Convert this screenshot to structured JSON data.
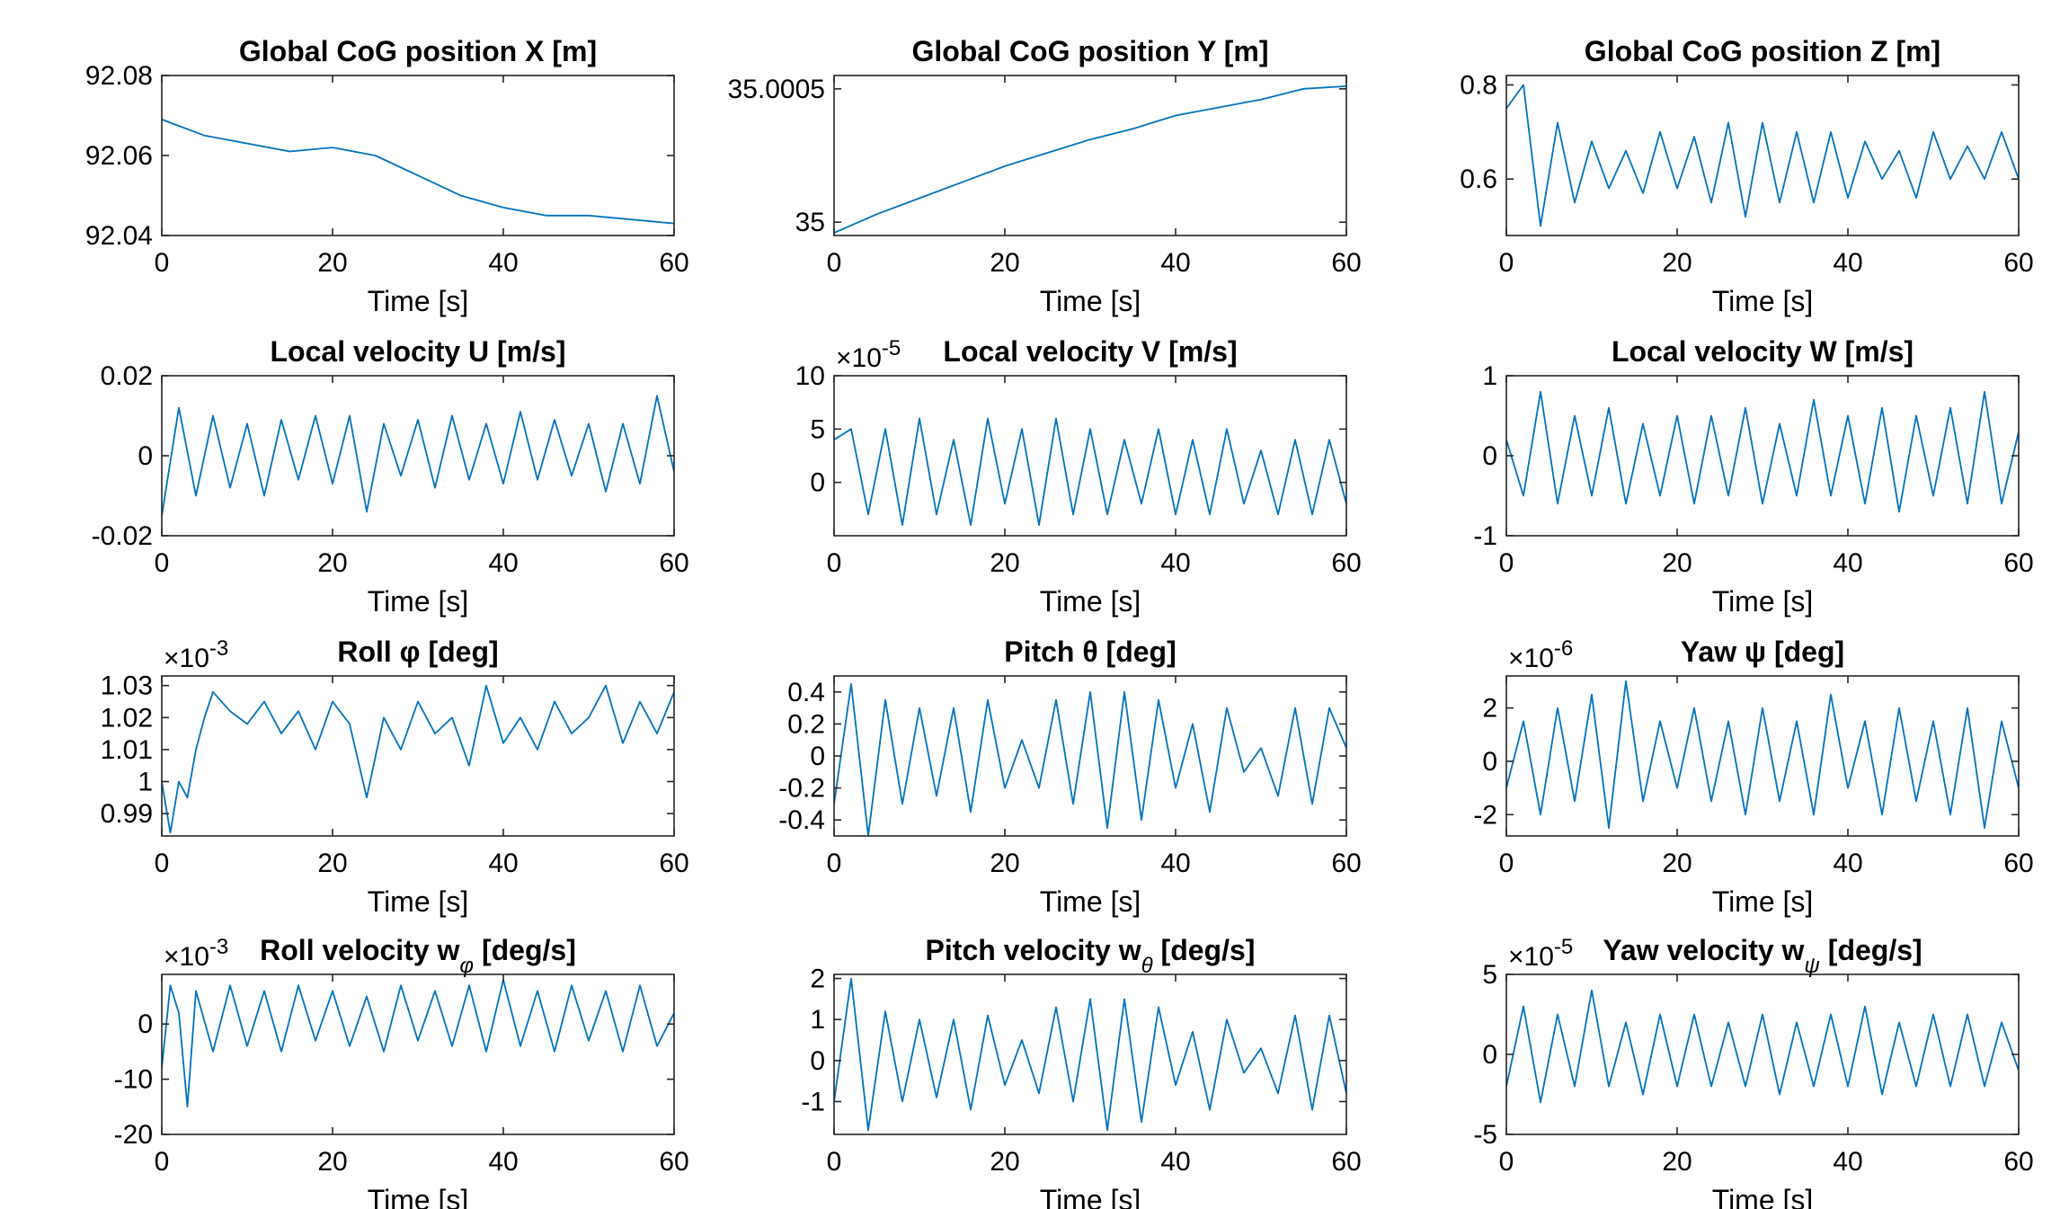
{
  "chart_data": [
    {
      "type": "line",
      "title": "Global CoG position X [m]",
      "xlabel": "Time [s]",
      "xlim": [
        0,
        60
      ],
      "xticks": [
        0,
        20,
        40,
        60
      ],
      "xticklabels": [
        "0",
        "20",
        "40",
        "60"
      ],
      "ylim": [
        92.04,
        92.08
      ],
      "yticks": [
        92.04,
        92.06,
        92.08
      ],
      "yticklabels": [
        "92.04",
        "92.06",
        "92.08"
      ],
      "multiplier": "",
      "series": [
        {
          "x": [
            0,
            5,
            10,
            15,
            20,
            25,
            30,
            35,
            40,
            45,
            50,
            55,
            60
          ],
          "y": [
            92.069,
            92.065,
            92.063,
            92.061,
            92.062,
            92.06,
            92.055,
            92.05,
            92.047,
            92.045,
            92.045,
            92.044,
            92.043
          ]
        }
      ]
    },
    {
      "type": "line",
      "title": "Global CoG position Y [m]",
      "xlabel": "Time [s]",
      "xlim": [
        0,
        60
      ],
      "xticks": [
        0,
        20,
        40,
        60
      ],
      "xticklabels": [
        "0",
        "20",
        "40",
        "60"
      ],
      "ylim": [
        34.99995,
        35.00055
      ],
      "yticks": [
        35,
        35.0005
      ],
      "yticklabels": [
        "35",
        "35.0005"
      ],
      "multiplier": "",
      "series": [
        {
          "x": [
            0,
            5,
            10,
            15,
            20,
            25,
            30,
            35,
            40,
            45,
            50,
            55,
            60
          ],
          "y": [
            34.99996,
            35.00003,
            35.00009,
            35.00015,
            35.00021,
            35.00026,
            35.00031,
            35.00035,
            35.0004,
            35.00043,
            35.00046,
            35.0005,
            35.00051
          ]
        }
      ]
    },
    {
      "type": "line",
      "title": "Global CoG position Z [m]",
      "xlabel": "Time [s]",
      "xlim": [
        0,
        60
      ],
      "xticks": [
        0,
        20,
        40,
        60
      ],
      "xticklabels": [
        "0",
        "20",
        "40",
        "60"
      ],
      "ylim": [
        0.48,
        0.82
      ],
      "yticks": [
        0.6,
        0.8
      ],
      "yticklabels": [
        "0.6",
        "0.8"
      ],
      "multiplier": "",
      "series": [
        {
          "x": [
            0,
            2,
            4,
            6,
            8,
            10,
            12,
            14,
            16,
            18,
            20,
            22,
            24,
            26,
            28,
            30,
            32,
            34,
            36,
            38,
            40,
            42,
            44,
            46,
            48,
            50,
            52,
            54,
            56,
            58,
            60
          ],
          "y": [
            0.75,
            0.8,
            0.5,
            0.72,
            0.55,
            0.68,
            0.58,
            0.66,
            0.57,
            0.7,
            0.58,
            0.69,
            0.55,
            0.72,
            0.52,
            0.72,
            0.55,
            0.7,
            0.55,
            0.7,
            0.56,
            0.68,
            0.6,
            0.66,
            0.56,
            0.7,
            0.6,
            0.67,
            0.6,
            0.7,
            0.6
          ]
        }
      ]
    },
    {
      "type": "line",
      "title": "Local velocity U [m/s]",
      "xlabel": "Time [s]",
      "xlim": [
        0,
        60
      ],
      "xticks": [
        0,
        20,
        40,
        60
      ],
      "xticklabels": [
        "0",
        "20",
        "40",
        "60"
      ],
      "ylim": [
        -0.02,
        0.02
      ],
      "yticks": [
        -0.02,
        0,
        0.02
      ],
      "yticklabels": [
        "-0.02",
        "0",
        "0.02"
      ],
      "multiplier": "",
      "series": [
        {
          "x": [
            0,
            2,
            4,
            6,
            8,
            10,
            12,
            14,
            16,
            18,
            20,
            22,
            24,
            26,
            28,
            30,
            32,
            34,
            36,
            38,
            40,
            42,
            44,
            46,
            48,
            50,
            52,
            54,
            56,
            58,
            60
          ],
          "y": [
            -0.015,
            0.012,
            -0.01,
            0.01,
            -0.008,
            0.008,
            -0.01,
            0.009,
            -0.006,
            0.01,
            -0.007,
            0.01,
            -0.014,
            0.008,
            -0.005,
            0.009,
            -0.008,
            0.01,
            -0.006,
            0.008,
            -0.007,
            0.011,
            -0.006,
            0.009,
            -0.005,
            0.008,
            -0.009,
            0.008,
            -0.007,
            0.015,
            -0.004
          ]
        }
      ]
    },
    {
      "type": "line",
      "title": "Local velocity V [m/s]",
      "xlabel": "Time [s]",
      "xlim": [
        0,
        60
      ],
      "xticks": [
        0,
        20,
        40,
        60
      ],
      "xticklabels": [
        "0",
        "20",
        "40",
        "60"
      ],
      "ylim": [
        -5,
        10
      ],
      "yticks": [
        0,
        5,
        10
      ],
      "yticklabels": [
        "0",
        "5",
        "10"
      ],
      "multiplier": "×10-5",
      "series": [
        {
          "x": [
            0,
            2,
            4,
            6,
            8,
            10,
            12,
            14,
            16,
            18,
            20,
            22,
            24,
            26,
            28,
            30,
            32,
            34,
            36,
            38,
            40,
            42,
            44,
            46,
            48,
            50,
            52,
            54,
            56,
            58,
            60
          ],
          "y": [
            4,
            5,
            -3,
            5,
            -4,
            6,
            -3,
            4,
            -4,
            6,
            -2,
            5,
            -4,
            6,
            -3,
            5,
            -3,
            4,
            -2,
            5,
            -3,
            4,
            -3,
            5,
            -2,
            3,
            -3,
            4,
            -3,
            4,
            -2
          ]
        }
      ]
    },
    {
      "type": "line",
      "title": "Local velocity W [m/s]",
      "xlabel": "Time [s]",
      "xlim": [
        0,
        60
      ],
      "xticks": [
        0,
        20,
        40,
        60
      ],
      "xticklabels": [
        "0",
        "20",
        "40",
        "60"
      ],
      "ylim": [
        -1,
        1
      ],
      "yticks": [
        -1,
        0,
        1
      ],
      "yticklabels": [
        "-1",
        "0",
        "1"
      ],
      "multiplier": "",
      "series": [
        {
          "x": [
            0,
            2,
            4,
            6,
            8,
            10,
            12,
            14,
            16,
            18,
            20,
            22,
            24,
            26,
            28,
            30,
            32,
            34,
            36,
            38,
            40,
            42,
            44,
            46,
            48,
            50,
            52,
            54,
            56,
            58,
            60
          ],
          "y": [
            0.2,
            -0.5,
            0.8,
            -0.6,
            0.5,
            -0.5,
            0.6,
            -0.6,
            0.4,
            -0.5,
            0.5,
            -0.6,
            0.5,
            -0.5,
            0.6,
            -0.6,
            0.4,
            -0.5,
            0.7,
            -0.5,
            0.5,
            -0.6,
            0.6,
            -0.7,
            0.5,
            -0.5,
            0.6,
            -0.6,
            0.8,
            -0.6,
            0.3
          ]
        }
      ]
    },
    {
      "type": "line",
      "title": "Roll φ [deg]",
      "xlabel": "Time [s]",
      "xlim": [
        0,
        60
      ],
      "xticks": [
        0,
        20,
        40,
        60
      ],
      "xticklabels": [
        "0",
        "20",
        "40",
        "60"
      ],
      "ylim": [
        0.983,
        1.033
      ],
      "yticks": [
        0.99,
        1,
        1.01,
        1.02,
        1.03
      ],
      "yticklabels": [
        "0.99",
        "1",
        "1.01",
        "1.02",
        "1.03"
      ],
      "multiplier": "×10-3",
      "series": [
        {
          "x": [
            0,
            1,
            2,
            3,
            4,
            5,
            6,
            8,
            10,
            12,
            14,
            16,
            18,
            20,
            22,
            24,
            26,
            28,
            30,
            32,
            34,
            36,
            38,
            40,
            42,
            44,
            46,
            48,
            50,
            52,
            54,
            56,
            58,
            60
          ],
          "y": [
            1.0,
            0.984,
            1.0,
            0.995,
            1.01,
            1.02,
            1.028,
            1.022,
            1.018,
            1.025,
            1.015,
            1.022,
            1.01,
            1.025,
            1.018,
            0.995,
            1.02,
            1.01,
            1.025,
            1.015,
            1.02,
            1.005,
            1.03,
            1.012,
            1.02,
            1.01,
            1.025,
            1.015,
            1.02,
            1.03,
            1.012,
            1.025,
            1.015,
            1.028
          ]
        }
      ]
    },
    {
      "type": "line",
      "title": "Pitch θ [deg]",
      "xlabel": "Time [s]",
      "xlim": [
        0,
        60
      ],
      "xticks": [
        0,
        20,
        40,
        60
      ],
      "xticklabels": [
        "0",
        "20",
        "40",
        "60"
      ],
      "ylim": [
        -0.5,
        0.5
      ],
      "yticks": [
        -0.4,
        -0.2,
        0,
        0.2,
        0.4
      ],
      "yticklabels": [
        "-0.4",
        "-0.2",
        "0",
        "0.2",
        "0.4"
      ],
      "multiplier": "",
      "series": [
        {
          "x": [
            0,
            2,
            4,
            6,
            8,
            10,
            12,
            14,
            16,
            18,
            20,
            22,
            24,
            26,
            28,
            30,
            32,
            34,
            36,
            38,
            40,
            42,
            44,
            46,
            48,
            50,
            52,
            54,
            56,
            58,
            60
          ],
          "y": [
            -0.3,
            0.45,
            -0.5,
            0.35,
            -0.3,
            0.3,
            -0.25,
            0.3,
            -0.35,
            0.35,
            -0.2,
            0.1,
            -0.2,
            0.35,
            -0.3,
            0.4,
            -0.45,
            0.4,
            -0.4,
            0.35,
            -0.2,
            0.2,
            -0.35,
            0.3,
            -0.1,
            0.05,
            -0.25,
            0.3,
            -0.3,
            0.3,
            0.05
          ]
        }
      ]
    },
    {
      "type": "line",
      "title": "Yaw ψ [deg]",
      "xlabel": "Time [s]",
      "xlim": [
        0,
        60
      ],
      "xticks": [
        0,
        20,
        40,
        60
      ],
      "xticklabels": [
        "0",
        "20",
        "40",
        "60"
      ],
      "ylim": [
        -2.8,
        3.2
      ],
      "yticks": [
        -2,
        0,
        2
      ],
      "yticklabels": [
        "-2",
        "0",
        "2"
      ],
      "multiplier": "×10-6",
      "series": [
        {
          "x": [
            0,
            2,
            4,
            6,
            8,
            10,
            12,
            14,
            16,
            18,
            20,
            22,
            24,
            26,
            28,
            30,
            32,
            34,
            36,
            38,
            40,
            42,
            44,
            46,
            48,
            50,
            52,
            54,
            56,
            58,
            60
          ],
          "y": [
            -1,
            1.5,
            -2,
            2,
            -1.5,
            2.5,
            -2.5,
            3,
            -1.5,
            1.5,
            -1,
            2,
            -1.5,
            1.5,
            -2,
            2,
            -1.5,
            1.5,
            -2,
            2.5,
            -1,
            1.5,
            -2,
            2,
            -1.5,
            1.5,
            -2,
            2,
            -2.5,
            1.5,
            -1
          ]
        }
      ]
    },
    {
      "type": "line",
      "title": "Roll velocity w_φ [deg/s]",
      "xlabel": "Time [s]",
      "xlim": [
        0,
        60
      ],
      "xticks": [
        0,
        20,
        40,
        60
      ],
      "xticklabels": [
        "0",
        "20",
        "40",
        "60"
      ],
      "ylim": [
        -20,
        9
      ],
      "yticks": [
        -20,
        -10,
        0
      ],
      "yticklabels": [
        "-20",
        "-10",
        "0"
      ],
      "multiplier": "×10-3",
      "series": [
        {
          "x": [
            0,
            1,
            2,
            3,
            4,
            6,
            8,
            10,
            12,
            14,
            16,
            18,
            20,
            22,
            24,
            26,
            28,
            30,
            32,
            34,
            36,
            38,
            40,
            42,
            44,
            46,
            48,
            50,
            52,
            54,
            56,
            58,
            60
          ],
          "y": [
            -8,
            7,
            2,
            -15,
            6,
            -5,
            7,
            -4,
            6,
            -5,
            7,
            -3,
            6,
            -4,
            5,
            -5,
            7,
            -3,
            6,
            -4,
            7,
            -5,
            8,
            -4,
            6,
            -5,
            7,
            -3,
            6,
            -5,
            7,
            -4,
            2
          ]
        }
      ]
    },
    {
      "type": "line",
      "title": "Pitch velocity w_θ [deg/s]",
      "xlabel": "Time [s]",
      "xlim": [
        0,
        60
      ],
      "xticks": [
        0,
        20,
        40,
        60
      ],
      "xticklabels": [
        "0",
        "20",
        "40",
        "60"
      ],
      "ylim": [
        -1.8,
        2.1
      ],
      "yticks": [
        -1,
        0,
        1,
        2
      ],
      "yticklabels": [
        "-1",
        "0",
        "1",
        "2"
      ],
      "multiplier": "",
      "series": [
        {
          "x": [
            0,
            2,
            4,
            6,
            8,
            10,
            12,
            14,
            16,
            18,
            20,
            22,
            24,
            26,
            28,
            30,
            32,
            34,
            36,
            38,
            40,
            42,
            44,
            46,
            48,
            50,
            52,
            54,
            56,
            58,
            60
          ],
          "y": [
            -1,
            2,
            -1.7,
            1.2,
            -1,
            1,
            -0.9,
            1,
            -1.2,
            1.1,
            -0.6,
            0.5,
            -0.8,
            1.3,
            -1,
            1.5,
            -1.7,
            1.5,
            -1.5,
            1.3,
            -0.6,
            0.7,
            -1.2,
            1,
            -0.3,
            0.3,
            -0.8,
            1.1,
            -1.2,
            1.1,
            -0.8
          ]
        }
      ]
    },
    {
      "type": "line",
      "title": "Yaw velocity w_ψ [deg/s]",
      "xlabel": "Time [s]",
      "xlim": [
        0,
        60
      ],
      "xticks": [
        0,
        20,
        40,
        60
      ],
      "xticklabels": [
        "0",
        "20",
        "40",
        "60"
      ],
      "ylim": [
        -5,
        5
      ],
      "yticks": [
        -5,
        0,
        5
      ],
      "yticklabels": [
        "-5",
        "0",
        "5"
      ],
      "multiplier": "×10-5",
      "series": [
        {
          "x": [
            0,
            2,
            4,
            6,
            8,
            10,
            12,
            14,
            16,
            18,
            20,
            22,
            24,
            26,
            28,
            30,
            32,
            34,
            36,
            38,
            40,
            42,
            44,
            46,
            48,
            50,
            52,
            54,
            56,
            58,
            60
          ],
          "y": [
            -2,
            3,
            -3,
            2.5,
            -2,
            4,
            -2,
            2,
            -2.5,
            2.5,
            -2,
            2.5,
            -2,
            2,
            -2,
            2.5,
            -2.5,
            2,
            -2,
            2.5,
            -2,
            3,
            -2.5,
            2,
            -2,
            2.5,
            -2,
            2.5,
            -2,
            2,
            -1
          ]
        }
      ]
    }
  ]
}
